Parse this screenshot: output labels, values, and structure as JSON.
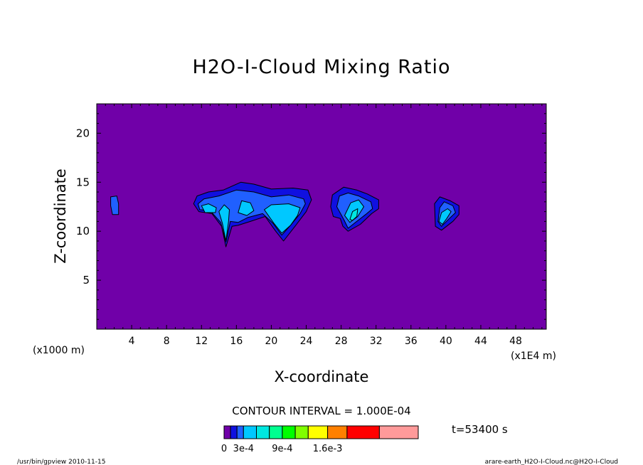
{
  "chart_data": {
    "type": "contour",
    "title": "H2O-I-Cloud Mixing Ratio",
    "xlabel": "X-coordinate",
    "ylabel": "Z-coordinate",
    "x_unit_left": "(x1000 m)",
    "x_unit_right": "(x1E4 m)",
    "xlim": [
      0,
      51.5
    ],
    "ylim": [
      0,
      23
    ],
    "x_ticks": [
      {
        "value": 4,
        "label": "4"
      },
      {
        "value": 8,
        "label": "8"
      },
      {
        "value": 12,
        "label": "12"
      },
      {
        "value": 16,
        "label": "16"
      },
      {
        "value": 20,
        "label": "20"
      },
      {
        "value": 24,
        "label": "24"
      },
      {
        "value": 28,
        "label": "28"
      },
      {
        "value": 32,
        "label": "32"
      },
      {
        "value": 36,
        "label": "36"
      },
      {
        "value": 40,
        "label": "40"
      },
      {
        "value": 44,
        "label": "44"
      },
      {
        "value": 48,
        "label": "48"
      }
    ],
    "y_ticks": [
      {
        "value": 5,
        "label": "5"
      },
      {
        "value": 10,
        "label": "10"
      },
      {
        "value": 15,
        "label": "15"
      },
      {
        "value": 20,
        "label": "20"
      }
    ],
    "contour_interval_text": "CONTOUR INTERVAL = 1.000E-04",
    "time_text": "t=53400 s",
    "colorbar": {
      "colors": [
        "#7000a8",
        "#1010e0",
        "#2060ff",
        "#00c8ff",
        "#00e8e0",
        "#00ff90",
        "#00ff00",
        "#80ff00",
        "#ffff00",
        "#ff8000",
        "#ff0000",
        "#ff9a9a"
      ],
      "bounds": [
        0,
        0.0001,
        0.0002,
        0.0003,
        0.0005,
        0.0007,
        0.0009,
        0.0011,
        0.0013,
        0.0016,
        0.0019,
        0.0024,
        0.003
      ],
      "labels": [
        {
          "value": 0,
          "label": "0"
        },
        {
          "value": 0.0003,
          "label": "3e-4"
        },
        {
          "value": 0.0009,
          "label": "9e-4"
        },
        {
          "value": 0.0016,
          "label": "1.6e-3"
        }
      ]
    },
    "background_color": "#7000a8",
    "regions": [
      {
        "name": "cloud-a",
        "color": "#2060ff",
        "outline": [
          [
            1.6,
            13.5
          ],
          [
            2.3,
            13.6
          ],
          [
            2.5,
            12.8
          ],
          [
            2.5,
            11.7
          ],
          [
            1.8,
            11.7
          ],
          [
            1.6,
            12.6
          ]
        ]
      },
      {
        "name": "cloud-b-outer",
        "color": "#1010e0",
        "outline": [
          [
            11.1,
            12.8
          ],
          [
            11.5,
            13.6
          ],
          [
            12.8,
            14.0
          ],
          [
            14.5,
            14.2
          ],
          [
            16.5,
            15.0
          ],
          [
            18.0,
            14.8
          ],
          [
            20.0,
            14.3
          ],
          [
            22.5,
            14.4
          ],
          [
            24.2,
            14.2
          ],
          [
            24.6,
            13.2
          ],
          [
            24.0,
            12.0
          ],
          [
            22.8,
            10.6
          ],
          [
            21.4,
            9.0
          ],
          [
            20.5,
            10.0
          ],
          [
            19.3,
            11.5
          ],
          [
            17.6,
            11.0
          ],
          [
            16.2,
            10.6
          ],
          [
            15.5,
            10.5
          ],
          [
            14.8,
            8.4
          ],
          [
            14.3,
            10.5
          ],
          [
            13.2,
            11.8
          ],
          [
            11.7,
            12.0
          ]
        ]
      },
      {
        "name": "cloud-b-inner",
        "color": "#2060ff",
        "outline": [
          [
            11.6,
            12.8
          ],
          [
            12.3,
            13.3
          ],
          [
            14.0,
            13.6
          ],
          [
            16.0,
            14.2
          ],
          [
            18.0,
            14.0
          ],
          [
            20.0,
            13.5
          ],
          [
            22.0,
            13.7
          ],
          [
            23.7,
            13.3
          ],
          [
            23.9,
            12.8
          ],
          [
            23.3,
            11.8
          ],
          [
            22.2,
            10.6
          ],
          [
            21.2,
            9.6
          ],
          [
            20.2,
            10.8
          ],
          [
            19.0,
            11.8
          ],
          [
            17.3,
            11.4
          ],
          [
            16.2,
            10.9
          ],
          [
            15.3,
            11.0
          ],
          [
            14.8,
            8.9
          ],
          [
            14.2,
            10.9
          ],
          [
            13.0,
            12.1
          ],
          [
            11.8,
            12.2
          ]
        ]
      },
      {
        "name": "cloud-b-core1",
        "color": "#00c8ff",
        "outline": [
          [
            12.0,
            12.6
          ],
          [
            12.8,
            12.8
          ],
          [
            13.7,
            12.4
          ],
          [
            13.6,
            11.9
          ],
          [
            12.4,
            11.9
          ]
        ]
      },
      {
        "name": "cloud-b-core2",
        "color": "#00c8ff",
        "outline": [
          [
            14.0,
            12.0
          ],
          [
            14.6,
            12.7
          ],
          [
            15.2,
            12.2
          ],
          [
            15.1,
            11.0
          ],
          [
            14.8,
            9.0
          ],
          [
            14.4,
            10.8
          ]
        ]
      },
      {
        "name": "cloud-b-core3",
        "color": "#00c8ff",
        "outline": [
          [
            16.2,
            11.9
          ],
          [
            16.6,
            13.1
          ],
          [
            17.6,
            12.9
          ],
          [
            18.0,
            12.1
          ],
          [
            17.2,
            11.6
          ]
        ]
      },
      {
        "name": "cloud-b-core4",
        "color": "#00c8ff",
        "outline": [
          [
            19.2,
            12.2
          ],
          [
            20.0,
            12.7
          ],
          [
            22.0,
            12.8
          ],
          [
            23.3,
            12.4
          ],
          [
            23.0,
            11.6
          ],
          [
            22.2,
            10.6
          ],
          [
            21.2,
            9.8
          ],
          [
            20.3,
            10.8
          ]
        ]
      },
      {
        "name": "cloud-c-outer",
        "color": "#1010e0",
        "outline": [
          [
            26.8,
            12.5
          ],
          [
            27.0,
            13.7
          ],
          [
            28.3,
            14.5
          ],
          [
            29.8,
            14.2
          ],
          [
            31.0,
            13.8
          ],
          [
            32.3,
            13.2
          ],
          [
            32.3,
            12.3
          ],
          [
            31.5,
            11.8
          ],
          [
            30.2,
            10.7
          ],
          [
            28.8,
            10.0
          ],
          [
            28.2,
            10.5
          ],
          [
            27.9,
            11.3
          ],
          [
            27.1,
            11.5
          ]
        ]
      },
      {
        "name": "cloud-c-inner",
        "color": "#2060ff",
        "outline": [
          [
            27.5,
            12.5
          ],
          [
            27.8,
            13.6
          ],
          [
            28.8,
            13.9
          ],
          [
            30.0,
            13.6
          ],
          [
            31.4,
            13.0
          ],
          [
            31.6,
            12.3
          ],
          [
            30.8,
            11.7
          ],
          [
            29.5,
            10.8
          ],
          [
            28.8,
            10.3
          ],
          [
            28.3,
            11.2
          ]
        ]
      },
      {
        "name": "cloud-c-core",
        "color": "#00c8ff",
        "outline": [
          [
            28.4,
            11.6
          ],
          [
            29.1,
            12.9
          ],
          [
            30.0,
            13.2
          ],
          [
            30.6,
            12.5
          ],
          [
            29.9,
            11.5
          ],
          [
            29.0,
            10.9
          ]
        ]
      },
      {
        "name": "cloud-c-max",
        "color": "#00e8e0",
        "outline": [
          [
            29.0,
            11.2
          ],
          [
            29.3,
            12.0
          ],
          [
            29.9,
            12.3
          ],
          [
            29.8,
            11.5
          ],
          [
            29.3,
            11.1
          ]
        ]
      },
      {
        "name": "cloud-d-outer",
        "color": "#1010e0",
        "outline": [
          [
            38.8,
            10.5
          ],
          [
            38.7,
            12.8
          ],
          [
            39.3,
            13.5
          ],
          [
            40.5,
            13.1
          ],
          [
            41.5,
            12.6
          ],
          [
            41.5,
            11.7
          ],
          [
            40.8,
            11.0
          ],
          [
            39.5,
            10.1
          ]
        ]
      },
      {
        "name": "cloud-d-inner",
        "color": "#2060ff",
        "outline": [
          [
            39.1,
            11.0
          ],
          [
            39.3,
            12.4
          ],
          [
            39.8,
            13.0
          ],
          [
            40.8,
            12.6
          ],
          [
            41.1,
            11.9
          ],
          [
            40.4,
            11.3
          ],
          [
            39.5,
            10.5
          ]
        ]
      },
      {
        "name": "cloud-d-core",
        "color": "#00c8ff",
        "outline": [
          [
            39.2,
            11.0
          ],
          [
            39.5,
            11.9
          ],
          [
            40.2,
            12.3
          ],
          [
            40.6,
            12.0
          ],
          [
            40.1,
            11.3
          ],
          [
            39.6,
            10.7
          ]
        ]
      }
    ]
  },
  "footer": {
    "left": "/usr/bin/gpview   2010-11-15",
    "right": "arare-earth_H2O-I-Cloud.nc@H2O-I-Cloud"
  }
}
